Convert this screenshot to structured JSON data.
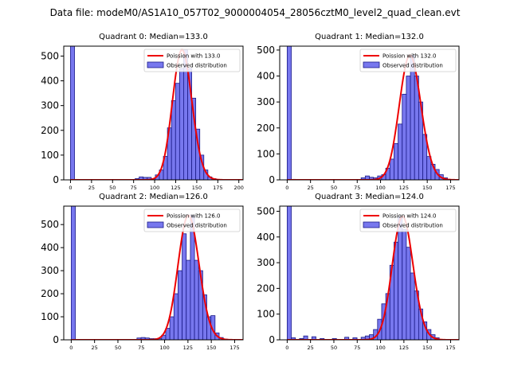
{
  "figure_title": "Data file: modeM0/AS1A10_057T02_9000004054_28056cztM0_level2_quad_clean.evt",
  "colors": {
    "bar_fill": "#7777ee",
    "bar_edge": "#1a1a88",
    "poisson_line": "#ee0000",
    "axes": "#000000"
  },
  "chart_data": [
    {
      "type": "bar",
      "title": "Quadrant 0: Median=133.0",
      "median": 133.0,
      "xlim": [
        -8,
        205
      ],
      "ylim": [
        0,
        540
      ],
      "xticks": [
        0,
        25,
        50,
        75,
        100,
        125,
        150,
        175,
        200
      ],
      "yticks": [
        0,
        100,
        200,
        300,
        400,
        500
      ],
      "bin_width": 4.8,
      "bars": [
        {
          "x": 0,
          "y": 540
        },
        {
          "x": 4.8,
          "y": 2
        },
        {
          "x": 76.8,
          "y": 5
        },
        {
          "x": 81.6,
          "y": 12
        },
        {
          "x": 86.4,
          "y": 10
        },
        {
          "x": 91.2,
          "y": 10
        },
        {
          "x": 96,
          "y": 5
        },
        {
          "x": 100.8,
          "y": 20
        },
        {
          "x": 105.6,
          "y": 40
        },
        {
          "x": 110.4,
          "y": 95
        },
        {
          "x": 115.2,
          "y": 210
        },
        {
          "x": 120,
          "y": 320
        },
        {
          "x": 124.8,
          "y": 390
        },
        {
          "x": 129.6,
          "y": 450
        },
        {
          "x": 134.4,
          "y": 525
        },
        {
          "x": 139.2,
          "y": 450
        },
        {
          "x": 144,
          "y": 330
        },
        {
          "x": 148.8,
          "y": 205
        },
        {
          "x": 153.6,
          "y": 100
        },
        {
          "x": 158.4,
          "y": 40
        },
        {
          "x": 163.2,
          "y": 12
        },
        {
          "x": 168,
          "y": 5
        },
        {
          "x": 172.8,
          "y": 2
        }
      ],
      "legend": {
        "poisson_label": "Poission with 133.0",
        "observed_label": "Observed distribution",
        "position": "upper right"
      }
    },
    {
      "type": "bar",
      "title": "Quadrant 1: Median=132.0",
      "median": 132.0,
      "xlim": [
        -8,
        184
      ],
      "ylim": [
        0,
        515
      ],
      "xticks": [
        0,
        25,
        50,
        75,
        100,
        125,
        150,
        175
      ],
      "yticks": [
        0,
        100,
        200,
        300,
        400,
        500
      ],
      "bin_width": 4.4,
      "bars": [
        {
          "x": 0,
          "y": 515
        },
        {
          "x": 4.4,
          "y": 2
        },
        {
          "x": 79.2,
          "y": 8
        },
        {
          "x": 83.6,
          "y": 15
        },
        {
          "x": 88,
          "y": 10
        },
        {
          "x": 92.4,
          "y": 8
        },
        {
          "x": 96.8,
          "y": 15
        },
        {
          "x": 101.2,
          "y": 20
        },
        {
          "x": 105.6,
          "y": 45
        },
        {
          "x": 110,
          "y": 80
        },
        {
          "x": 114.4,
          "y": 140
        },
        {
          "x": 118.8,
          "y": 215
        },
        {
          "x": 123.2,
          "y": 330
        },
        {
          "x": 127.6,
          "y": 400
        },
        {
          "x": 132,
          "y": 480
        },
        {
          "x": 136.4,
          "y": 400
        },
        {
          "x": 140.8,
          "y": 300
        },
        {
          "x": 145.2,
          "y": 175
        },
        {
          "x": 149.6,
          "y": 90
        },
        {
          "x": 154,
          "y": 60
        },
        {
          "x": 158.4,
          "y": 40
        },
        {
          "x": 162.8,
          "y": 20
        },
        {
          "x": 167.2,
          "y": 8
        }
      ],
      "legend": {
        "poisson_label": "Poission with 132.0",
        "observed_label": "Observed distribution",
        "position": "upper right"
      }
    },
    {
      "type": "bar",
      "title": "Quadrant 2: Median=126.0",
      "median": 126.0,
      "xlim": [
        -8,
        184
      ],
      "ylim": [
        0,
        580
      ],
      "xticks": [
        0,
        25,
        50,
        75,
        100,
        125,
        150,
        175
      ],
      "yticks": [
        0,
        100,
        200,
        300,
        400,
        500
      ],
      "bin_width": 4.4,
      "bars": [
        {
          "x": 0,
          "y": 580
        },
        {
          "x": 4.4,
          "y": 2
        },
        {
          "x": 70.4,
          "y": 8
        },
        {
          "x": 74.8,
          "y": 10
        },
        {
          "x": 79.2,
          "y": 8
        },
        {
          "x": 83.6,
          "y": 5
        },
        {
          "x": 88,
          "y": 5
        },
        {
          "x": 92.4,
          "y": 5
        },
        {
          "x": 96.8,
          "y": 20
        },
        {
          "x": 101.2,
          "y": 50
        },
        {
          "x": 105.6,
          "y": 100
        },
        {
          "x": 110,
          "y": 200
        },
        {
          "x": 114.4,
          "y": 300
        },
        {
          "x": 118.8,
          "y": 460
        },
        {
          "x": 123.2,
          "y": 345
        },
        {
          "x": 127.6,
          "y": 540
        },
        {
          "x": 132,
          "y": 345
        },
        {
          "x": 136.4,
          "y": 300
        },
        {
          "x": 140.8,
          "y": 195
        },
        {
          "x": 145.2,
          "y": 100
        },
        {
          "x": 149.6,
          "y": 105
        },
        {
          "x": 154,
          "y": 30
        },
        {
          "x": 158.4,
          "y": 10
        },
        {
          "x": 162.8,
          "y": 3
        }
      ],
      "legend": {
        "poisson_label": "Poission with 126.0",
        "observed_label": "Observed distribution",
        "position": "upper right"
      }
    },
    {
      "type": "bar",
      "title": "Quadrant 3: Median=124.0",
      "median": 124.0,
      "xlim": [
        -8,
        184
      ],
      "ylim": [
        0,
        520
      ],
      "xticks": [
        0,
        25,
        50,
        75,
        100,
        125,
        150,
        175
      ],
      "yticks": [
        0,
        100,
        200,
        300,
        400,
        500
      ],
      "bin_width": 4.4,
      "bars": [
        {
          "x": 0,
          "y": 520
        },
        {
          "x": 4.4,
          "y": 8
        },
        {
          "x": 13.2,
          "y": 5
        },
        {
          "x": 17.6,
          "y": 15
        },
        {
          "x": 26.4,
          "y": 12
        },
        {
          "x": 35.2,
          "y": 5
        },
        {
          "x": 48.4,
          "y": 5
        },
        {
          "x": 61.6,
          "y": 10
        },
        {
          "x": 70.4,
          "y": 8
        },
        {
          "x": 79.2,
          "y": 10
        },
        {
          "x": 83.6,
          "y": 15
        },
        {
          "x": 88,
          "y": 20
        },
        {
          "x": 92.4,
          "y": 40
        },
        {
          "x": 96.8,
          "y": 80
        },
        {
          "x": 101.2,
          "y": 140
        },
        {
          "x": 105.6,
          "y": 180
        },
        {
          "x": 110,
          "y": 290
        },
        {
          "x": 114.4,
          "y": 380
        },
        {
          "x": 118.8,
          "y": 480
        },
        {
          "x": 123.2,
          "y": 430
        },
        {
          "x": 127.6,
          "y": 360
        },
        {
          "x": 132,
          "y": 260
        },
        {
          "x": 136.4,
          "y": 190
        },
        {
          "x": 140.8,
          "y": 120
        },
        {
          "x": 145.2,
          "y": 70
        },
        {
          "x": 149.6,
          "y": 40
        },
        {
          "x": 154,
          "y": 20
        },
        {
          "x": 158.4,
          "y": 8
        }
      ],
      "legend": {
        "poisson_label": "Poission with 124.0",
        "observed_label": "Observed distribution",
        "position": "upper right"
      }
    }
  ]
}
